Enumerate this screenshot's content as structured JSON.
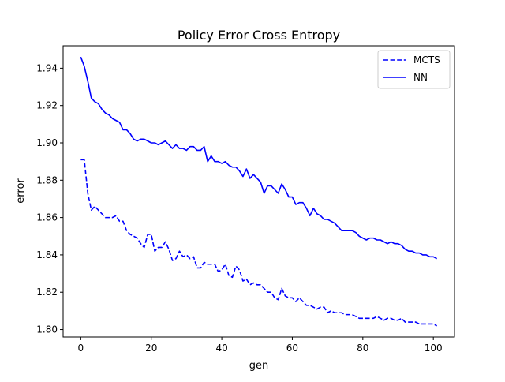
{
  "chart_data": {
    "type": "line",
    "title": "Policy Error Cross Entropy",
    "xlabel": "gen",
    "ylabel": "error",
    "xlim": [
      -5,
      106
    ],
    "ylim": [
      1.796,
      1.952
    ],
    "xticks": [
      0,
      20,
      40,
      60,
      80,
      100
    ],
    "yticks": [
      1.8,
      1.82,
      1.84,
      1.86,
      1.88,
      1.9,
      1.92,
      1.94
    ],
    "ytick_labels": [
      "1.80",
      "1.82",
      "1.84",
      "1.86",
      "1.88",
      "1.90",
      "1.92",
      "1.94"
    ],
    "grid": false,
    "legend_position": "upper right",
    "series": [
      {
        "name": "MCTS",
        "style": "dashed",
        "color": "#0000ff",
        "x": [
          0,
          1,
          2,
          3,
          4,
          5,
          6,
          7,
          8,
          9,
          10,
          11,
          12,
          13,
          14,
          15,
          16,
          17,
          18,
          19,
          20,
          21,
          22,
          23,
          24,
          25,
          26,
          27,
          28,
          29,
          30,
          31,
          32,
          33,
          34,
          35,
          36,
          37,
          38,
          39,
          40,
          41,
          42,
          43,
          44,
          45,
          46,
          47,
          48,
          49,
          50,
          51,
          52,
          53,
          54,
          55,
          56,
          57,
          58,
          59,
          60,
          61,
          62,
          63,
          64,
          65,
          66,
          67,
          68,
          69,
          70,
          71,
          72,
          73,
          74,
          75,
          76,
          77,
          78,
          79,
          80,
          81,
          82,
          83,
          84,
          85,
          86,
          87,
          88,
          89,
          90,
          91,
          92,
          93,
          94,
          95,
          96,
          97,
          98,
          99,
          100,
          101
        ],
        "values": [
          1.891,
          1.891,
          1.873,
          1.864,
          1.866,
          1.864,
          1.862,
          1.86,
          1.86,
          1.86,
          1.861,
          1.858,
          1.858,
          1.853,
          1.851,
          1.85,
          1.849,
          1.846,
          1.844,
          1.851,
          1.851,
          1.842,
          1.844,
          1.844,
          1.847,
          1.843,
          1.837,
          1.838,
          1.842,
          1.839,
          1.84,
          1.838,
          1.839,
          1.833,
          1.833,
          1.836,
          1.835,
          1.835,
          1.835,
          1.831,
          1.832,
          1.835,
          1.829,
          1.828,
          1.834,
          1.832,
          1.826,
          1.827,
          1.824,
          1.825,
          1.824,
          1.824,
          1.822,
          1.82,
          1.82,
          1.817,
          1.816,
          1.822,
          1.818,
          1.817,
          1.817,
          1.815,
          1.817,
          1.815,
          1.813,
          1.813,
          1.812,
          1.811,
          1.812,
          1.812,
          1.809,
          1.81,
          1.809,
          1.809,
          1.809,
          1.808,
          1.808,
          1.808,
          1.807,
          1.806,
          1.806,
          1.806,
          1.806,
          1.806,
          1.807,
          1.806,
          1.805,
          1.806,
          1.806,
          1.805,
          1.805,
          1.806,
          1.804,
          1.804,
          1.804,
          1.804,
          1.803,
          1.803,
          1.803,
          1.803,
          1.803,
          1.802
        ]
      },
      {
        "name": "NN",
        "style": "solid",
        "color": "#0000ff",
        "x": [
          0,
          1,
          2,
          3,
          4,
          5,
          6,
          7,
          8,
          9,
          10,
          11,
          12,
          13,
          14,
          15,
          16,
          17,
          18,
          19,
          20,
          21,
          22,
          23,
          24,
          25,
          26,
          27,
          28,
          29,
          30,
          31,
          32,
          33,
          34,
          35,
          36,
          37,
          38,
          39,
          40,
          41,
          42,
          43,
          44,
          45,
          46,
          47,
          48,
          49,
          50,
          51,
          52,
          53,
          54,
          55,
          56,
          57,
          58,
          59,
          60,
          61,
          62,
          63,
          64,
          65,
          66,
          67,
          68,
          69,
          70,
          71,
          72,
          73,
          74,
          75,
          76,
          77,
          78,
          79,
          80,
          81,
          82,
          83,
          84,
          85,
          86,
          87,
          88,
          89,
          90,
          91,
          92,
          93,
          94,
          95,
          96,
          97,
          98,
          99,
          100,
          101
        ],
        "values": [
          1.946,
          1.941,
          1.933,
          1.924,
          1.922,
          1.921,
          1.918,
          1.916,
          1.915,
          1.913,
          1.912,
          1.911,
          1.907,
          1.907,
          1.905,
          1.902,
          1.901,
          1.902,
          1.902,
          1.901,
          1.9,
          1.9,
          1.899,
          1.9,
          1.901,
          1.899,
          1.897,
          1.899,
          1.897,
          1.897,
          1.896,
          1.898,
          1.898,
          1.896,
          1.896,
          1.898,
          1.89,
          1.893,
          1.89,
          1.89,
          1.889,
          1.89,
          1.888,
          1.887,
          1.887,
          1.885,
          1.882,
          1.886,
          1.881,
          1.883,
          1.881,
          1.879,
          1.873,
          1.877,
          1.877,
          1.875,
          1.873,
          1.878,
          1.875,
          1.871,
          1.871,
          1.867,
          1.868,
          1.868,
          1.865,
          1.861,
          1.865,
          1.862,
          1.861,
          1.859,
          1.859,
          1.858,
          1.857,
          1.855,
          1.853,
          1.853,
          1.853,
          1.853,
          1.852,
          1.85,
          1.849,
          1.848,
          1.849,
          1.849,
          1.848,
          1.848,
          1.847,
          1.846,
          1.847,
          1.846,
          1.846,
          1.845,
          1.843,
          1.842,
          1.842,
          1.841,
          1.841,
          1.84,
          1.84,
          1.839,
          1.839,
          1.838
        ]
      }
    ]
  }
}
